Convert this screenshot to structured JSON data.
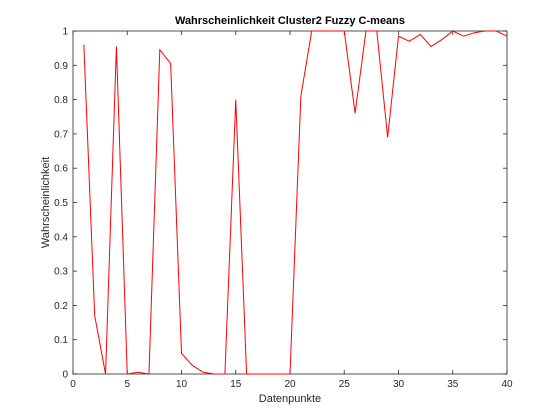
{
  "chart_data": {
    "type": "line",
    "title": "Wahrscheinlichkeit Cluster2 Fuzzy C-means",
    "xlabel": "Datenpunkte",
    "ylabel": "Wahrscheinlichkeit",
    "xlim": [
      0,
      40
    ],
    "ylim": [
      0,
      1
    ],
    "xticks": [
      0,
      5,
      10,
      15,
      20,
      25,
      30,
      35,
      40
    ],
    "yticks": [
      0,
      0.1,
      0.2,
      0.3,
      0.4,
      0.5,
      0.6,
      0.7,
      0.8,
      0.9,
      1
    ],
    "grid": false,
    "series": [
      {
        "color": "#ff0000",
        "x": [
          1,
          2,
          3,
          4,
          5,
          6,
          7,
          8,
          9,
          10,
          11,
          12,
          13,
          14,
          15,
          16,
          17,
          18,
          19,
          20,
          21,
          22,
          23,
          24,
          25,
          26,
          27,
          28,
          29,
          30,
          31,
          32,
          33,
          34,
          35,
          36,
          37,
          38,
          39,
          40
        ],
        "values": [
          0.96,
          0.17,
          0.0,
          0.955,
          0.0,
          0.005,
          0.0,
          0.945,
          0.905,
          0.06,
          0.025,
          0.005,
          0.0,
          0.0,
          0.8,
          0.0,
          0.0,
          0.0,
          0.0,
          0.0,
          0.81,
          1.0,
          1.0,
          1.0,
          1.0,
          0.76,
          1.0,
          1.0,
          0.69,
          0.985,
          0.97,
          0.99,
          0.955,
          0.975,
          1.0,
          0.985,
          0.995,
          1.0,
          1.0,
          0.985
        ]
      }
    ]
  }
}
